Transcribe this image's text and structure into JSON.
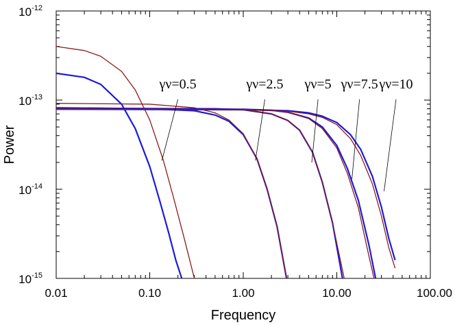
{
  "chart_data": {
    "type": "line",
    "title": "",
    "xlabel": "Frequency",
    "ylabel": "Power",
    "xscale": "log",
    "yscale": "log",
    "xlim": [
      0.01,
      100
    ],
    "ylim": [
      1e-15,
      1e-12
    ],
    "grid": false,
    "x_ticks": [
      {
        "value": 0.01,
        "label": "0.01"
      },
      {
        "value": 0.1,
        "label": "0.10"
      },
      {
        "value": 1,
        "label": "1.00"
      },
      {
        "value": 10,
        "label": "10.00"
      },
      {
        "value": 100,
        "label": "100.00"
      }
    ],
    "y_ticks": [
      {
        "value": 1e-15,
        "base": "10",
        "exp": "-15"
      },
      {
        "value": 1e-14,
        "base": "10",
        "exp": "-14"
      },
      {
        "value": 1e-13,
        "base": "10",
        "exp": "-13"
      },
      {
        "value": 1e-12,
        "base": "10",
        "exp": "-12"
      }
    ],
    "series_colors": {
      "blue": "#1a1adc",
      "red": "#8b1a1a"
    },
    "series": [
      {
        "name": "γν=0.5 (blue)",
        "color": "blue",
        "stroke": "thick",
        "x": [
          0.01,
          0.02,
          0.03,
          0.05,
          0.07,
          0.1,
          0.13,
          0.16,
          0.19,
          0.22
        ],
        "y": [
          2e-13,
          1.8e-13,
          1.5e-13,
          9e-14,
          4.8e-14,
          1.8e-14,
          7e-15,
          3.2e-15,
          1.6e-15,
          1e-15
        ]
      },
      {
        "name": "γν=0.5 (red)",
        "color": "red",
        "stroke": "thin",
        "x": [
          0.01,
          0.02,
          0.03,
          0.05,
          0.07,
          0.1,
          0.14,
          0.18,
          0.23,
          0.3
        ],
        "y": [
          4e-13,
          3.6e-13,
          3.1e-13,
          2.1e-13,
          1.3e-13,
          6e-14,
          2.1e-14,
          8e-15,
          3e-15,
          1e-15
        ]
      },
      {
        "name": "γν=2.5 (blue)",
        "color": "blue",
        "stroke": "thick",
        "x": [
          0.01,
          0.1,
          0.3,
          0.5,
          0.7,
          1.0,
          1.4,
          1.8,
          2.3,
          2.9
        ],
        "y": [
          8.2e-14,
          8e-14,
          7.6e-14,
          6.8e-14,
          5.8e-14,
          4.1e-14,
          2.2e-14,
          1e-14,
          3.8e-15,
          1e-15
        ]
      },
      {
        "name": "γν=2.5 (red)",
        "color": "red",
        "stroke": "thin",
        "x": [
          0.01,
          0.1,
          0.3,
          0.5,
          0.7,
          1.0,
          1.4,
          1.8,
          2.3,
          2.9
        ],
        "y": [
          9.2e-14,
          9e-14,
          8.2e-14,
          7.2e-14,
          6e-14,
          4.2e-14,
          2.2e-14,
          1e-14,
          3.8e-15,
          1e-15
        ]
      },
      {
        "name": "γν=5 (blue)",
        "color": "blue",
        "stroke": "thick",
        "x": [
          0.01,
          0.5,
          1.0,
          2.0,
          3.0,
          4.0,
          5.5,
          7.0,
          9.0,
          11.5
        ],
        "y": [
          8.1e-14,
          8e-14,
          7.8e-14,
          7e-14,
          5.9e-14,
          4.6e-14,
          2.6e-14,
          1.2e-14,
          4.2e-15,
          1e-15
        ]
      },
      {
        "name": "γν=5 (red)",
        "color": "red",
        "stroke": "thin",
        "x": [
          0.01,
          0.5,
          1.0,
          2.0,
          3.0,
          4.0,
          5.5,
          7.0,
          9.0,
          12.0
        ],
        "y": [
          8.1e-14,
          8e-14,
          7.8e-14,
          7e-14,
          5.9e-14,
          4.6e-14,
          2.6e-14,
          1.2e-14,
          4.2e-15,
          1e-15
        ]
      },
      {
        "name": "γν=7.5 (blue)",
        "color": "blue",
        "stroke": "thick",
        "x": [
          0.01,
          1.0,
          2.0,
          3.0,
          5.0,
          7.0,
          10.0,
          13.0,
          17.0,
          22.0,
          26.0
        ],
        "y": [
          8e-14,
          7.9e-14,
          7.7e-14,
          7.3e-14,
          6.3e-14,
          5e-14,
          3.1e-14,
          1.7e-14,
          7.5e-15,
          2.4e-15,
          1e-15
        ]
      },
      {
        "name": "γν=7.5 (red)",
        "color": "red",
        "stroke": "thin",
        "x": [
          0.01,
          1.0,
          2.0,
          3.0,
          5.0,
          7.0,
          10.0,
          13.0,
          17.0,
          22.0,
          25.0
        ],
        "y": [
          8e-14,
          7.9e-14,
          7.7e-14,
          7.3e-14,
          6.2e-14,
          4.8e-14,
          2.9e-14,
          1.5e-14,
          6.2e-15,
          1.8e-15,
          1e-15
        ]
      },
      {
        "name": "γν=10 (blue)",
        "color": "blue",
        "stroke": "thick",
        "x": [
          0.01,
          1.0,
          3.0,
          5.0,
          7.0,
          10.0,
          14.0,
          18.0,
          24.0,
          30.0,
          36.0,
          42.0
        ],
        "y": [
          7.9e-14,
          7.8e-14,
          7.6e-14,
          7.2e-14,
          6.6e-14,
          5.6e-14,
          4.1e-14,
          2.8e-14,
          1.4e-14,
          6.3e-15,
          2.8e-15,
          1.6e-15
        ]
      },
      {
        "name": "γν=10 (red)",
        "color": "red",
        "stroke": "thin",
        "x": [
          0.01,
          1.0,
          3.0,
          5.0,
          7.0,
          10.0,
          14.0,
          18.0,
          24.0,
          30.0,
          36.0,
          42.0
        ],
        "y": [
          7.9e-14,
          7.8e-14,
          7.5e-14,
          7e-14,
          6.4e-14,
          5.3e-14,
          3.7e-14,
          2.4e-14,
          1.15e-14,
          5e-15,
          2.2e-15,
          1.3e-15
        ]
      }
    ],
    "annotations": [
      {
        "text": "γν=0.5",
        "label_x": 0.2,
        "label_y": 1.35e-13,
        "line_from_x": 0.2,
        "line_from_y": 1.02e-13,
        "line_to_x": 0.135,
        "line_to_y": 2.1e-14
      },
      {
        "text": "γν=2.5",
        "label_x": 1.7,
        "label_y": 1.35e-13,
        "line_from_x": 1.7,
        "line_from_y": 1.02e-13,
        "line_to_x": 1.35,
        "line_to_y": 2.1e-14
      },
      {
        "text": "γν=5",
        "label_x": 6.3,
        "label_y": 1.35e-13,
        "line_from_x": 6.3,
        "line_from_y": 1.02e-13,
        "line_to_x": 5.4,
        "line_to_y": 2e-14
      },
      {
        "text": "γν=7.5",
        "label_x": 17.5,
        "label_y": 1.35e-13,
        "line_from_x": 17.5,
        "line_from_y": 1.02e-13,
        "line_to_x": 14.5,
        "line_to_y": 1.3e-14
      },
      {
        "text": "γν=10",
        "label_x": 43.0,
        "label_y": 1.35e-13,
        "line_from_x": 43.0,
        "line_from_y": 1.02e-13,
        "line_to_x": 32.0,
        "line_to_y": 9.5e-15
      }
    ]
  }
}
